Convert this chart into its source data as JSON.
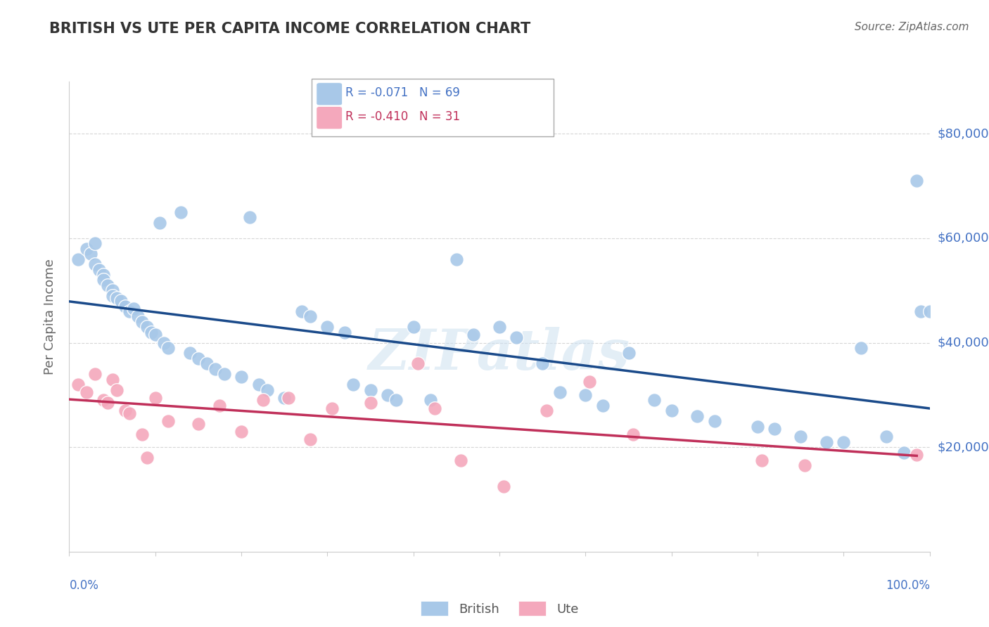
{
  "title": "BRITISH VS UTE PER CAPITA INCOME CORRELATION CHART",
  "source": "Source: ZipAtlas.com",
  "ylabel": "Per Capita Income",
  "ylim": [
    0,
    90000
  ],
  "xlim": [
    0.0,
    1.0
  ],
  "yticks": [
    20000,
    40000,
    60000,
    80000
  ],
  "ytick_labels": [
    "$20,000",
    "$40,000",
    "$60,000",
    "$80,000"
  ],
  "legend_r1": "R = -0.071",
  "legend_n1": "N = 69",
  "legend_r2": "R = -0.410",
  "legend_n2": "N = 31",
  "british_color": "#a8c8e8",
  "ute_color": "#f4a8bc",
  "british_line_color": "#1a4a8a",
  "ute_line_color": "#c0305a",
  "label_color": "#4472c4",
  "watermark": "ZIPatlas",
  "british_x": [
    0.01,
    0.02,
    0.025,
    0.03,
    0.03,
    0.035,
    0.04,
    0.04,
    0.045,
    0.05,
    0.05,
    0.055,
    0.06,
    0.065,
    0.07,
    0.075,
    0.08,
    0.085,
    0.09,
    0.095,
    0.1,
    0.105,
    0.11,
    0.115,
    0.13,
    0.14,
    0.15,
    0.16,
    0.17,
    0.18,
    0.2,
    0.21,
    0.22,
    0.23,
    0.25,
    0.27,
    0.28,
    0.3,
    0.32,
    0.33,
    0.35,
    0.37,
    0.38,
    0.4,
    0.42,
    0.45,
    0.47,
    0.5,
    0.52,
    0.55,
    0.57,
    0.6,
    0.62,
    0.65,
    0.68,
    0.7,
    0.73,
    0.75,
    0.8,
    0.82,
    0.85,
    0.88,
    0.9,
    0.92,
    0.95,
    0.97,
    0.985,
    0.99,
    1.0
  ],
  "british_y": [
    56000,
    58000,
    57000,
    59000,
    55000,
    54000,
    53000,
    52000,
    51000,
    50000,
    49000,
    48500,
    48000,
    47000,
    46000,
    46500,
    45000,
    44000,
    43000,
    42000,
    41500,
    63000,
    40000,
    39000,
    65000,
    38000,
    37000,
    36000,
    35000,
    34000,
    33500,
    64000,
    32000,
    31000,
    29500,
    46000,
    45000,
    43000,
    42000,
    32000,
    31000,
    30000,
    29000,
    43000,
    29000,
    56000,
    41500,
    43000,
    41000,
    36000,
    30500,
    30000,
    28000,
    38000,
    29000,
    27000,
    26000,
    25000,
    24000,
    23500,
    22000,
    21000,
    21000,
    39000,
    22000,
    19000,
    71000,
    46000,
    46000
  ],
  "ute_x": [
    0.01,
    0.02,
    0.03,
    0.04,
    0.045,
    0.05,
    0.055,
    0.065,
    0.07,
    0.085,
    0.09,
    0.1,
    0.115,
    0.15,
    0.175,
    0.2,
    0.225,
    0.255,
    0.28,
    0.305,
    0.35,
    0.405,
    0.425,
    0.455,
    0.505,
    0.555,
    0.605,
    0.655,
    0.805,
    0.855,
    0.985
  ],
  "ute_y": [
    32000,
    30500,
    34000,
    29000,
    28500,
    33000,
    31000,
    27000,
    26500,
    22500,
    18000,
    29500,
    25000,
    24500,
    28000,
    23000,
    29000,
    29500,
    21500,
    27500,
    28500,
    36000,
    27500,
    17500,
    12500,
    27000,
    32500,
    22500,
    17500,
    16500,
    18500
  ]
}
